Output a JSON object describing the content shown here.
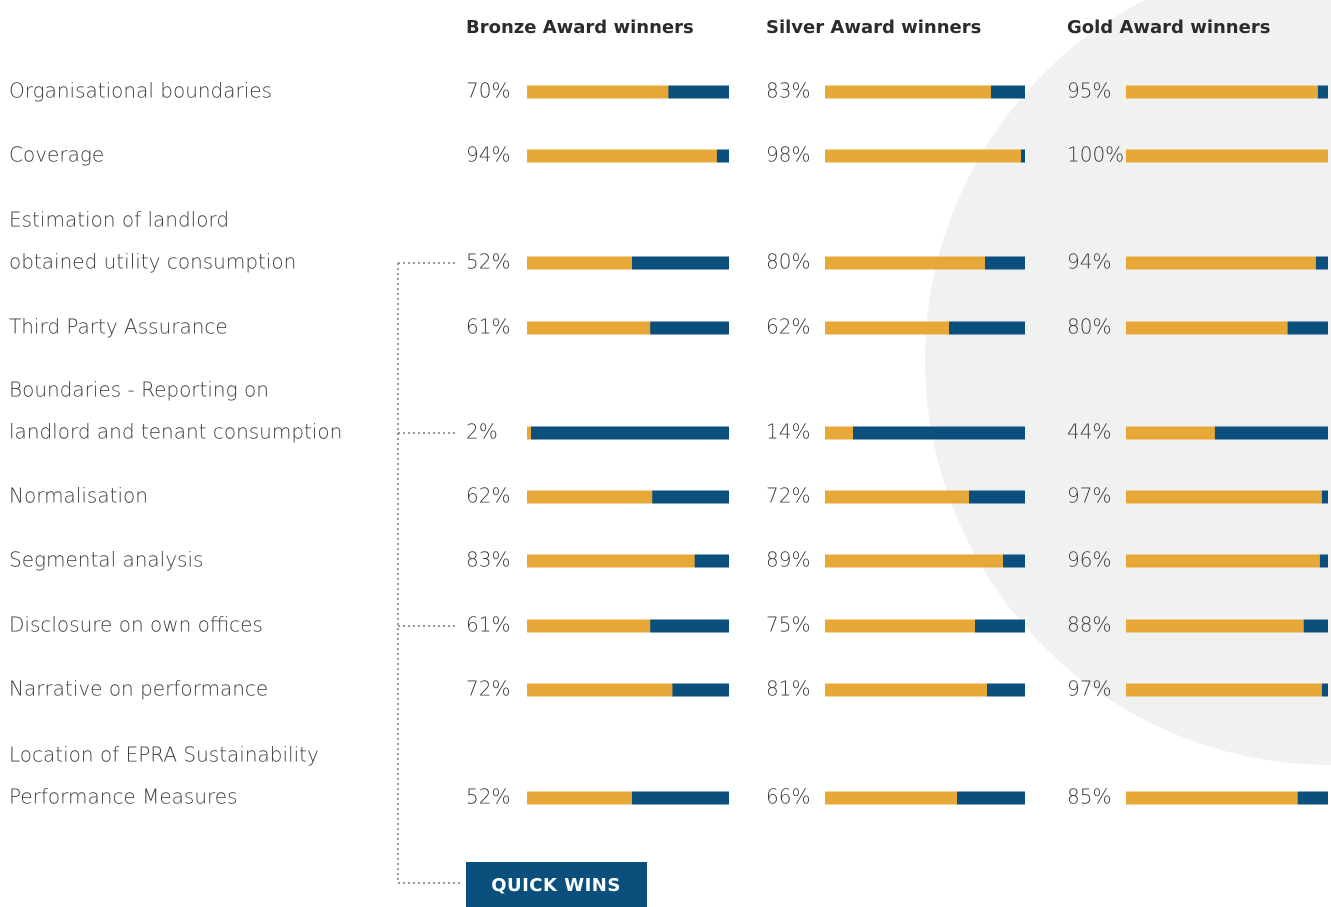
{
  "chart_data": {
    "type": "bar",
    "categories": [
      "Organisational boundaries",
      "Coverage",
      [
        "Estimation of landlord",
        "obtained utility consumption"
      ],
      "Third Party Assurance",
      [
        "Boundaries - Reporting on",
        "landlord and tenant consumption"
      ],
      "Normalisation",
      "Segmental analysis",
      "Disclosure on own offices",
      "Narrative on performance",
      [
        "Location of EPRA Sustainability",
        "Performance Measures"
      ]
    ],
    "series": [
      {
        "name": "Bronze Award winners",
        "color": "#e8a838",
        "values": [
          70,
          94,
          52,
          61,
          2,
          62,
          83,
          61,
          72,
          52
        ],
        "value_labels": [
          "70%",
          "94%",
          "52%",
          "61%",
          "2%",
          "62%",
          "83%",
          "61%",
          "72%",
          "52%"
        ]
      },
      {
        "name": "Silver Award winners",
        "color": "#e8a838",
        "values": [
          83,
          98,
          80,
          62,
          14,
          72,
          89,
          75,
          81,
          66
        ],
        "value_labels": [
          "83%",
          "98%",
          "80%",
          "62%",
          "14%",
          "72%",
          "89%",
          "75%",
          "81%",
          "66%"
        ]
      },
      {
        "name": "Gold Award winners",
        "color": "#e8a838",
        "values": [
          95,
          100,
          94,
          80,
          44,
          97,
          96,
          88,
          97,
          85
        ],
        "value_labels": [
          "95%",
          "100%",
          "94%",
          "80%",
          "44%",
          "97%",
          "96%",
          "88%",
          "97%",
          "85%"
        ]
      }
    ],
    "track_color": "#0b4f7d",
    "xlim": [
      0,
      100
    ],
    "annotation": "QUICK WINS"
  }
}
